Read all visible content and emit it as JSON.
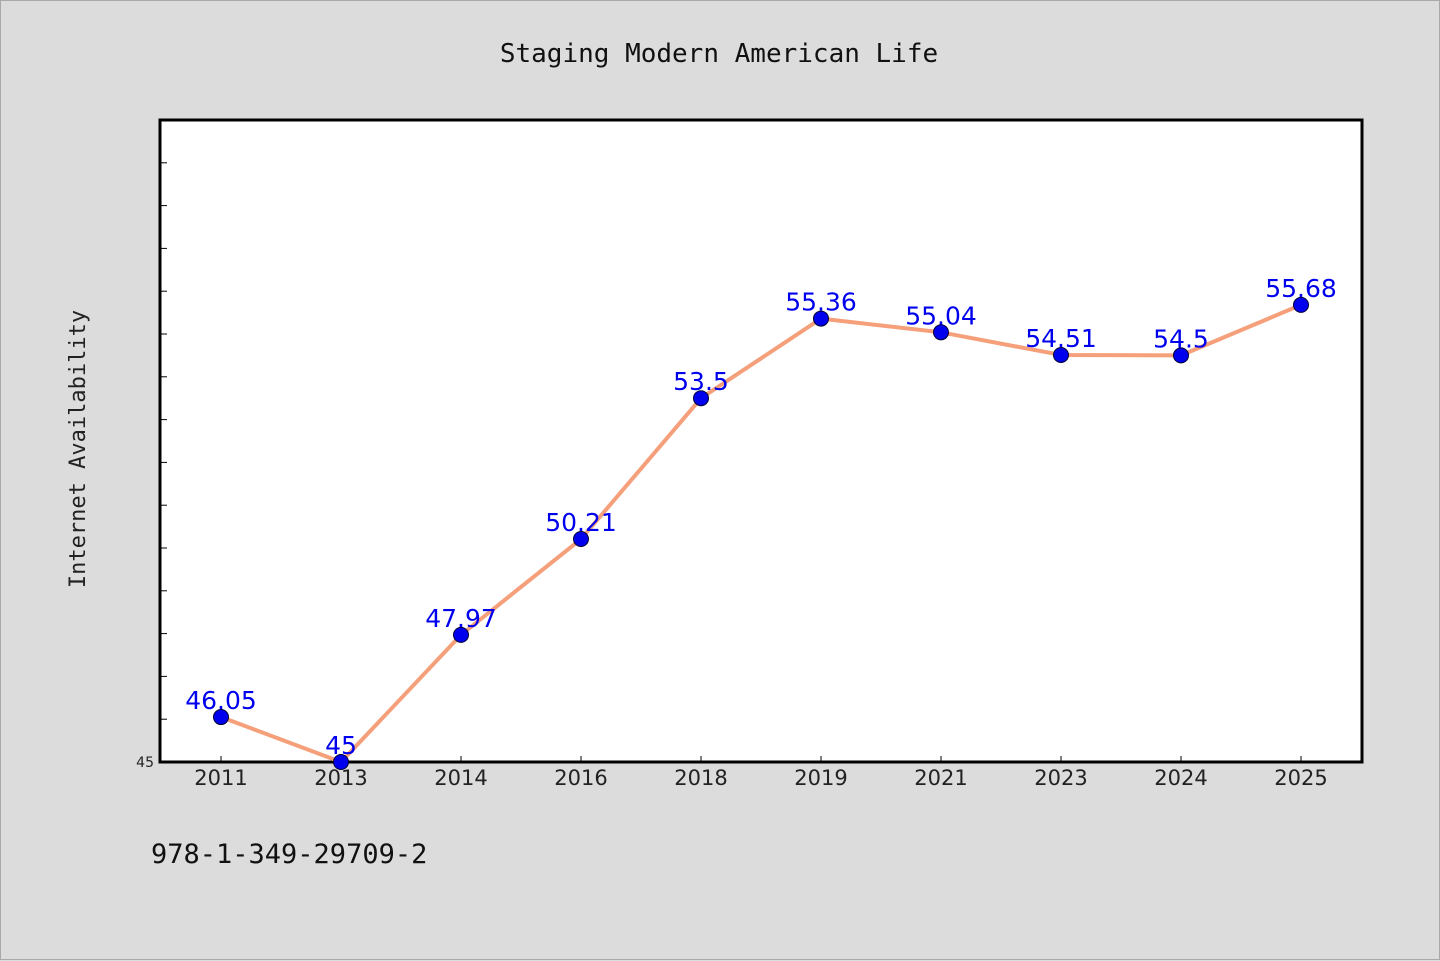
{
  "chart_data": {
    "type": "line",
    "title": "Staging Modern American Life",
    "ylabel": "Internet Availability",
    "xlabel": "",
    "categories": [
      "2011",
      "2013",
      "2014",
      "2016",
      "2018",
      "2019",
      "2021",
      "2023",
      "2024",
      "2025"
    ],
    "series": [
      {
        "values": [
          46.05,
          45,
          47.97,
          50.21,
          53.5,
          55.36,
          55.04,
          54.51,
          54.5,
          55.68
        ],
        "data_labels": [
          "46.05",
          "45",
          "47.97",
          "50.21",
          "53.5",
          "55.36",
          "55.04",
          "54.51",
          "54.5",
          "55.68"
        ],
        "line_color": "#f5a07a",
        "marker_color": "#0000ee",
        "label_color": "#0000ee"
      }
    ],
    "ylim": [
      45,
      60
    ],
    "ytick_labels": [
      {
        "value": 45,
        "label": "45"
      }
    ],
    "grid": false,
    "legend": "none"
  },
  "footer": {
    "code": "978-1-349-29709-2"
  }
}
